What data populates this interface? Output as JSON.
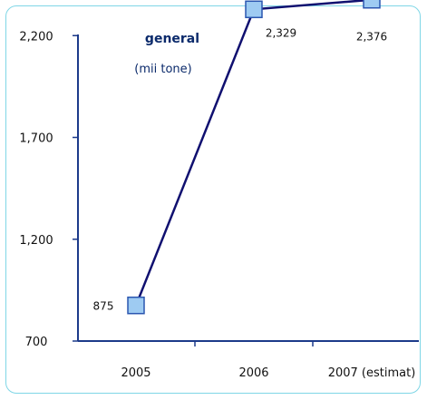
{
  "chart_data": {
    "type": "line",
    "title": "general",
    "subtitle": "(mii tone)",
    "categories": [
      "2005",
      "2006",
      "2007 (estimat)"
    ],
    "series": [
      {
        "values": [
          875,
          2329,
          2376
        ],
        "labels": [
          "875",
          "2,329",
          "2,376"
        ]
      }
    ],
    "yticks": [
      "2,200",
      "1,700",
      "1,200",
      "700"
    ],
    "ytick_values": [
      2200,
      1700,
      1200,
      700
    ],
    "ylim": [
      700,
      2700
    ],
    "grid": false,
    "colors": {
      "line": "#101070",
      "marker_fill": "#9ecbf2",
      "marker_stroke": "#2a56b0",
      "axis": "#1c3a8a",
      "frame": "#7fd6e6"
    }
  }
}
